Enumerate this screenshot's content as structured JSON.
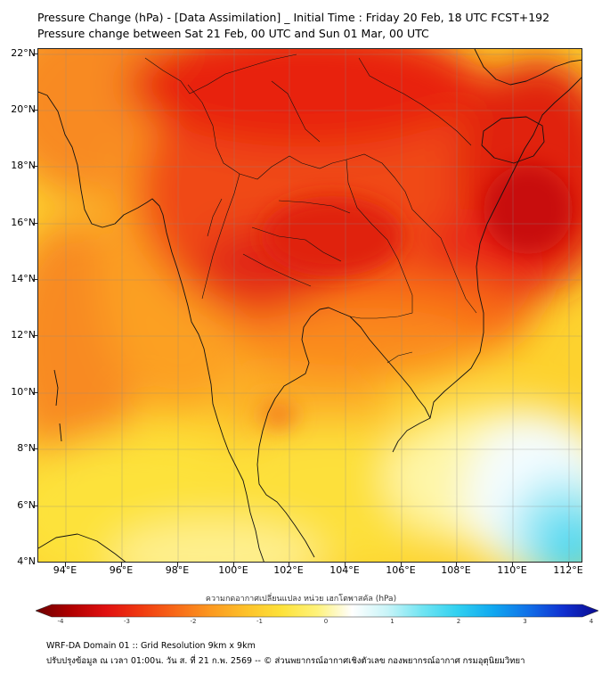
{
  "title": "Pressure Change (hPa) - [Data Assimilation] _ Initial Time : Friday 20 Feb, 18 UTC FCST+192",
  "subtitle": "Pressure change between Sat 21 Feb, 00 UTC and Sun 01 Mar, 00 UTC",
  "lat_labels": [
    "22°N",
    "20°N",
    "18°N",
    "16°N",
    "14°N",
    "12°N",
    "10°N",
    "8°N",
    "6°N",
    "4°N"
  ],
  "lon_labels": [
    "94°E",
    "96°E",
    "98°E",
    "100°E",
    "102°E",
    "104°E",
    "106°E",
    "108°E",
    "110°E",
    "112°E"
  ],
  "map_extent": {
    "lon_min": 93.0,
    "lon_max": 112.5,
    "lat_min": 4.0,
    "lat_max": 22.2
  },
  "colorbar": {
    "title": "ความกดอากาศเปลี่ยนแปลง หน่วย เฮกโตพาสคัล (hPa)",
    "min": -4,
    "max": 4,
    "ticks": [
      "-4",
      "-3",
      "-2",
      "-1",
      "0",
      "1",
      "2",
      "3",
      "4"
    ],
    "colors": [
      "#6b0000",
      "#b00000",
      "#e01010",
      "#f03a10",
      "#f86a18",
      "#fc9a20",
      "#fdc22a",
      "#fde23a",
      "#fef27a",
      "#ffffff",
      "#c8f4f8",
      "#70e4f2",
      "#30d0f0",
      "#10a8f0",
      "#1070e8",
      "#1030d0",
      "#0a0a90"
    ]
  },
  "footer": {
    "line1": "WRF-DA Domain 01 :: Grid Resolution 9km x 9km",
    "line2": "ปรับปรุงข้อมูล ณ เวลา 01:00น. วัน ส. ที่ 21 ก.พ. 2569 -- © ส่วนพยากรณ์อากาศเชิงตัวเลข กองพยากรณ์อากาศ กรมอุตุนิยมวิทยา"
  }
}
